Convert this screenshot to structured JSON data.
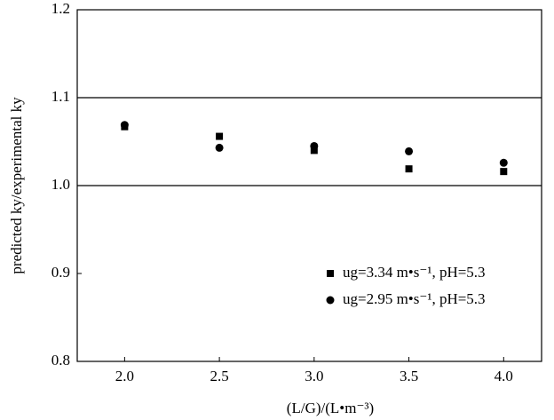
{
  "chart_data": {
    "type": "scatter",
    "xlabel": "(L/G)/(L•m⁻³)",
    "ylabel": "predicted ky/experimental ky",
    "x": [
      2.0,
      2.5,
      3.0,
      3.5,
      4.0
    ],
    "series": [
      {
        "name": "ug=3.34 m•s⁻¹, pH=5.3",
        "marker": "square",
        "color": "#000000",
        "values": [
          1.067,
          1.056,
          1.04,
          1.019,
          1.016
        ]
      },
      {
        "name": "ug=2.95 m•s⁻¹, pH=5.3",
        "marker": "circle",
        "color": "#000000",
        "values": [
          1.069,
          1.043,
          1.045,
          1.039,
          1.026
        ]
      }
    ],
    "xlim": [
      1.75,
      4.2
    ],
    "ylim": [
      0.8,
      1.2
    ],
    "xticks": [
      {
        "value": 2,
        "label": "2.0"
      },
      2.5,
      {
        "value": 3,
        "label": "3.0"
      },
      3.5,
      {
        "value": 4,
        "label": "4.0"
      }
    ],
    "yticks": [
      0.8,
      0.9,
      {
        "value": 1,
        "label": "1.0"
      },
      1.1,
      1.2
    ],
    "hlines": [
      1.1,
      1.0
    ],
    "legend": "lower-right"
  }
}
